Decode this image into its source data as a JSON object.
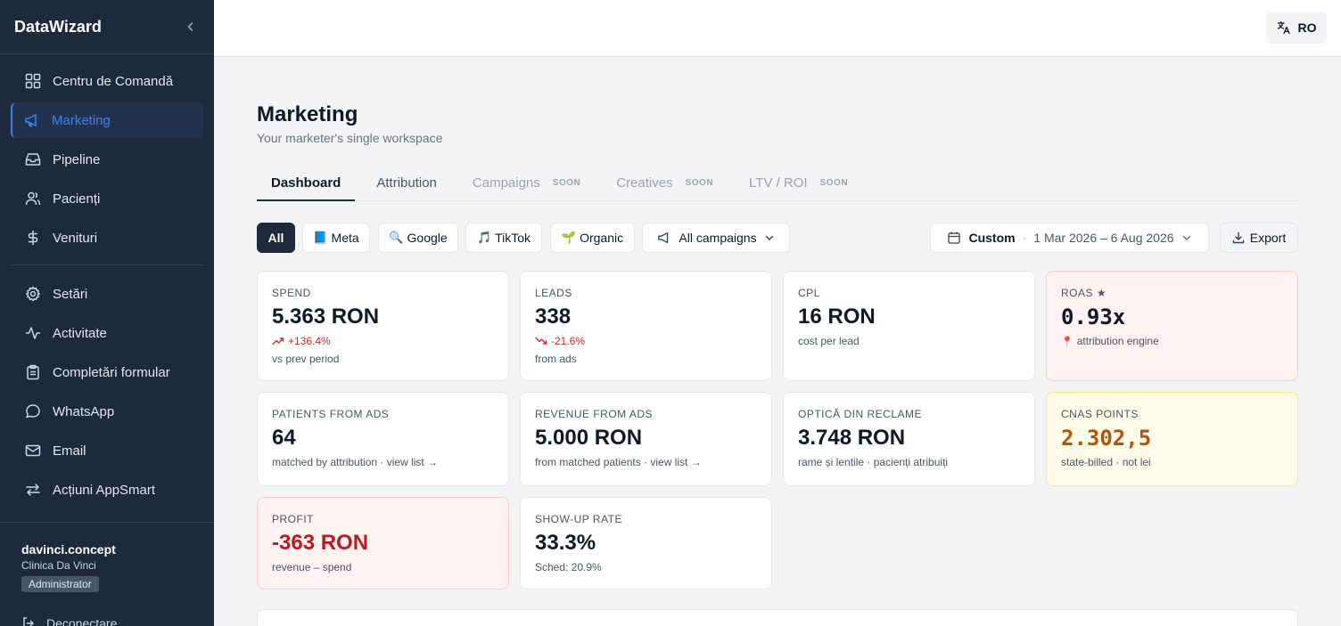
{
  "brand": {
    "name": "DataWizard"
  },
  "sidebar": {
    "items": [
      {
        "label": "Centru de Comandă",
        "icon": "grid-icon"
      },
      {
        "label": "Marketing",
        "icon": "megaphone-icon",
        "active": true
      },
      {
        "label": "Pipeline",
        "icon": "inbox-icon"
      },
      {
        "label": "Pacienți",
        "icon": "users-icon"
      },
      {
        "label": "Venituri",
        "icon": "dollar-icon"
      }
    ],
    "items2": [
      {
        "label": "Setări",
        "icon": "gear-icon"
      },
      {
        "label": "Activitate",
        "icon": "activity-icon"
      },
      {
        "label": "Completări formular",
        "icon": "clipboard-icon"
      },
      {
        "label": "WhatsApp",
        "icon": "chat-icon"
      },
      {
        "label": "Email",
        "icon": "mail-icon"
      },
      {
        "label": "Acțiuni AppSmart",
        "icon": "arrows-icon"
      }
    ],
    "user": {
      "name": "davinci.concept",
      "org": "Clinica Da Vinci",
      "role": "Administrator"
    },
    "logout": "Deconectare"
  },
  "topbar": {
    "lang": "RO"
  },
  "page": {
    "title": "Marketing",
    "subtitle": "Your marketer's single workspace"
  },
  "tabs": [
    {
      "label": "Dashboard",
      "state": "active"
    },
    {
      "label": "Attribution",
      "state": "normal"
    },
    {
      "label": "Campaigns",
      "state": "disabled",
      "badge": "SOON"
    },
    {
      "label": "Creatives",
      "state": "disabled",
      "badge": "SOON"
    },
    {
      "label": "LTV / ROI",
      "state": "disabled",
      "badge": "SOON"
    }
  ],
  "filters": {
    "all": "All",
    "meta": "Meta",
    "google": "Google",
    "tiktok": "TikTok",
    "organic": "Organic",
    "campaigns": "All campaigns",
    "range_type": "Custom",
    "range": "1 Mar 2026 – 6 Aug 2026",
    "export": "Export"
  },
  "cards": {
    "spend": {
      "label": "SPEND",
      "value": "5.363 RON",
      "delta": "+136.4%",
      "note": "vs prev period"
    },
    "leads": {
      "label": "LEADS",
      "value": "338",
      "delta": "-21.6%",
      "note": "from ads"
    },
    "cpl": {
      "label": "CPL",
      "value": "16 RON",
      "note": "cost per lead"
    },
    "roas": {
      "label": "ROAS",
      "value": "0.93x",
      "note": "attribution engine"
    },
    "patients": {
      "label": "PATIENTS FROM ADS",
      "value": "64",
      "note": "matched by attribution · view list →"
    },
    "revenue": {
      "label": "REVENUE FROM ADS",
      "value": "5.000 RON",
      "note": "from matched patients · view list →"
    },
    "optica": {
      "label": "OPTICĂ DIN RECLAME",
      "value": "3.748 RON",
      "note": "rame și lentile · pacienți atribuiți"
    },
    "cnas": {
      "label": "CNAS POINTS",
      "value": "2.302,5",
      "note": "state-billed · not lei"
    },
    "profit": {
      "label": "PROFIT",
      "value": "-363 RON",
      "note": "revenue – spend"
    },
    "showup": {
      "label": "SHOW-UP RATE",
      "value": "33.3%",
      "note": "Sched: 20.9%"
    }
  },
  "colors": {
    "sidebar_bg": "#1e293b",
    "accent": "#3b82f6",
    "negative": "#dc2626",
    "cnas": "#b45309"
  }
}
